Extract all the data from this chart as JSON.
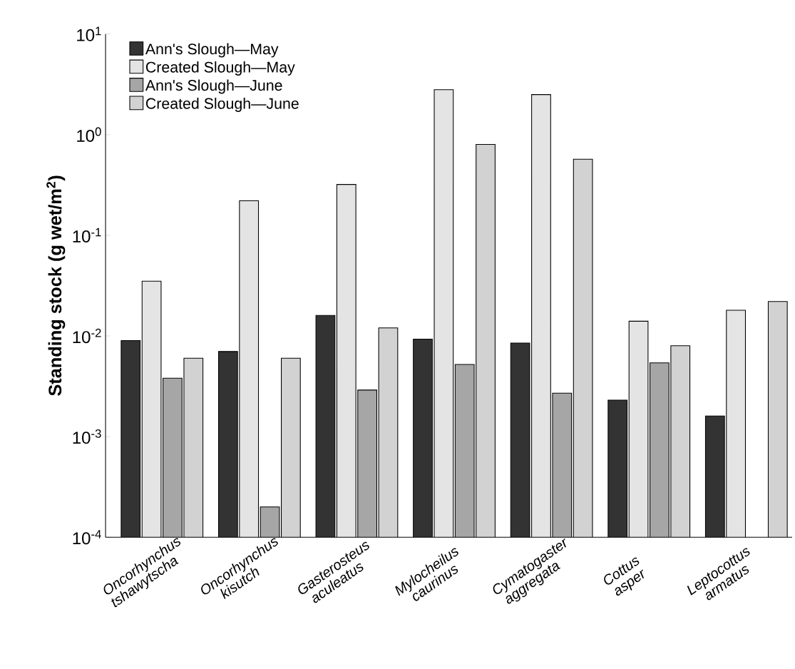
{
  "chart_data": {
    "type": "bar",
    "ylabel": "**Standing stock  (g wet/m$^{2}$)**",
    "log": "y",
    "categories": [
      "Oncorhynchus tshawytscha",
      "Oncorhynchus kisutch",
      "Gasterosteus aculeatus",
      "Mylocheilus caurinus",
      "Cymatogaster aggregata",
      "Cottus asper",
      "Leptocottus armatus"
    ],
    "series": [
      {
        "name": "Ann's Slough—May",
        "color": "#333333",
        "values": [
          0.009,
          0.007,
          0.016,
          0.0093,
          0.0085,
          0.0023,
          0.0016
        ]
      },
      {
        "name": "Created Slough—May",
        "color": "#e4e4e4",
        "values": [
          0.035,
          0.22,
          0.32,
          2.8,
          2.5,
          0.014,
          0.018
        ]
      },
      {
        "name": "Ann's Slough—June",
        "color": "#a6a6a6",
        "values": [
          0.0038,
          0.0002,
          0.0029,
          0.0052,
          0.0027,
          0.0054,
          null
        ]
      },
      {
        "name": "Created Slough—June",
        "color": "#d2d2d2",
        "values": [
          0.006,
          0.006,
          0.012,
          0.8,
          0.57,
          0.008,
          0.022
        ]
      }
    ],
    "ylim": [
      0.0001,
      10
    ],
    "yticks": [
      {
        "value": 0.0001,
        "label": "10$^{-4}$"
      },
      {
        "value": 0.001,
        "label": "10$^{-3}$"
      },
      {
        "value": 0.01,
        "label": "10$^{-2}$"
      },
      {
        "value": 0.1,
        "label": "10$^{-1}$"
      },
      {
        "value": 1,
        "label": "10$^{0}$"
      },
      {
        "value": 10,
        "label": "10$^{1}$"
      }
    ],
    "legend": "top left",
    "grid": false
  }
}
